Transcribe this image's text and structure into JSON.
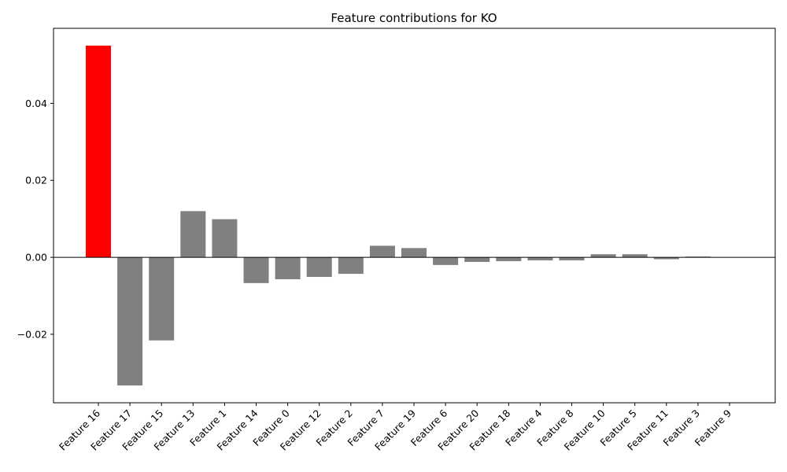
{
  "chart_data": {
    "type": "bar",
    "title": "Feature contributions for KO",
    "xlabel": "",
    "ylabel": "",
    "categories": [
      "Feature 16",
      "Feature 17",
      "Feature 15",
      "Feature 13",
      "Feature 1",
      "Feature 14",
      "Feature 0",
      "Feature 12",
      "Feature 2",
      "Feature 7",
      "Feature 19",
      "Feature 6",
      "Feature 20",
      "Feature 18",
      "Feature 4",
      "Feature 8",
      "Feature 10",
      "Feature 5",
      "Feature 11",
      "Feature 3",
      "Feature 9"
    ],
    "values": [
      0.055,
      -0.0333,
      -0.0216,
      0.012,
      0.0099,
      -0.0067,
      -0.0057,
      -0.0051,
      -0.0043,
      0.003,
      0.0024,
      -0.002,
      -0.0012,
      -0.001,
      -0.0008,
      -0.0008,
      0.0008,
      0.0008,
      -0.0005,
      0.0002,
      0.0
    ],
    "highlight_index": 0,
    "colors": {
      "highlight": "#ff0000",
      "default": "#808080",
      "zero_line": "#000000"
    },
    "ylim": [
      -0.0378,
      0.0595
    ],
    "yticks": [
      -0.02,
      0.0,
      0.02,
      0.04
    ],
    "ytick_labels": [
      "−0.02",
      "0.00",
      "0.02",
      "0.04"
    ],
    "zero_line": true,
    "grid": false
  }
}
